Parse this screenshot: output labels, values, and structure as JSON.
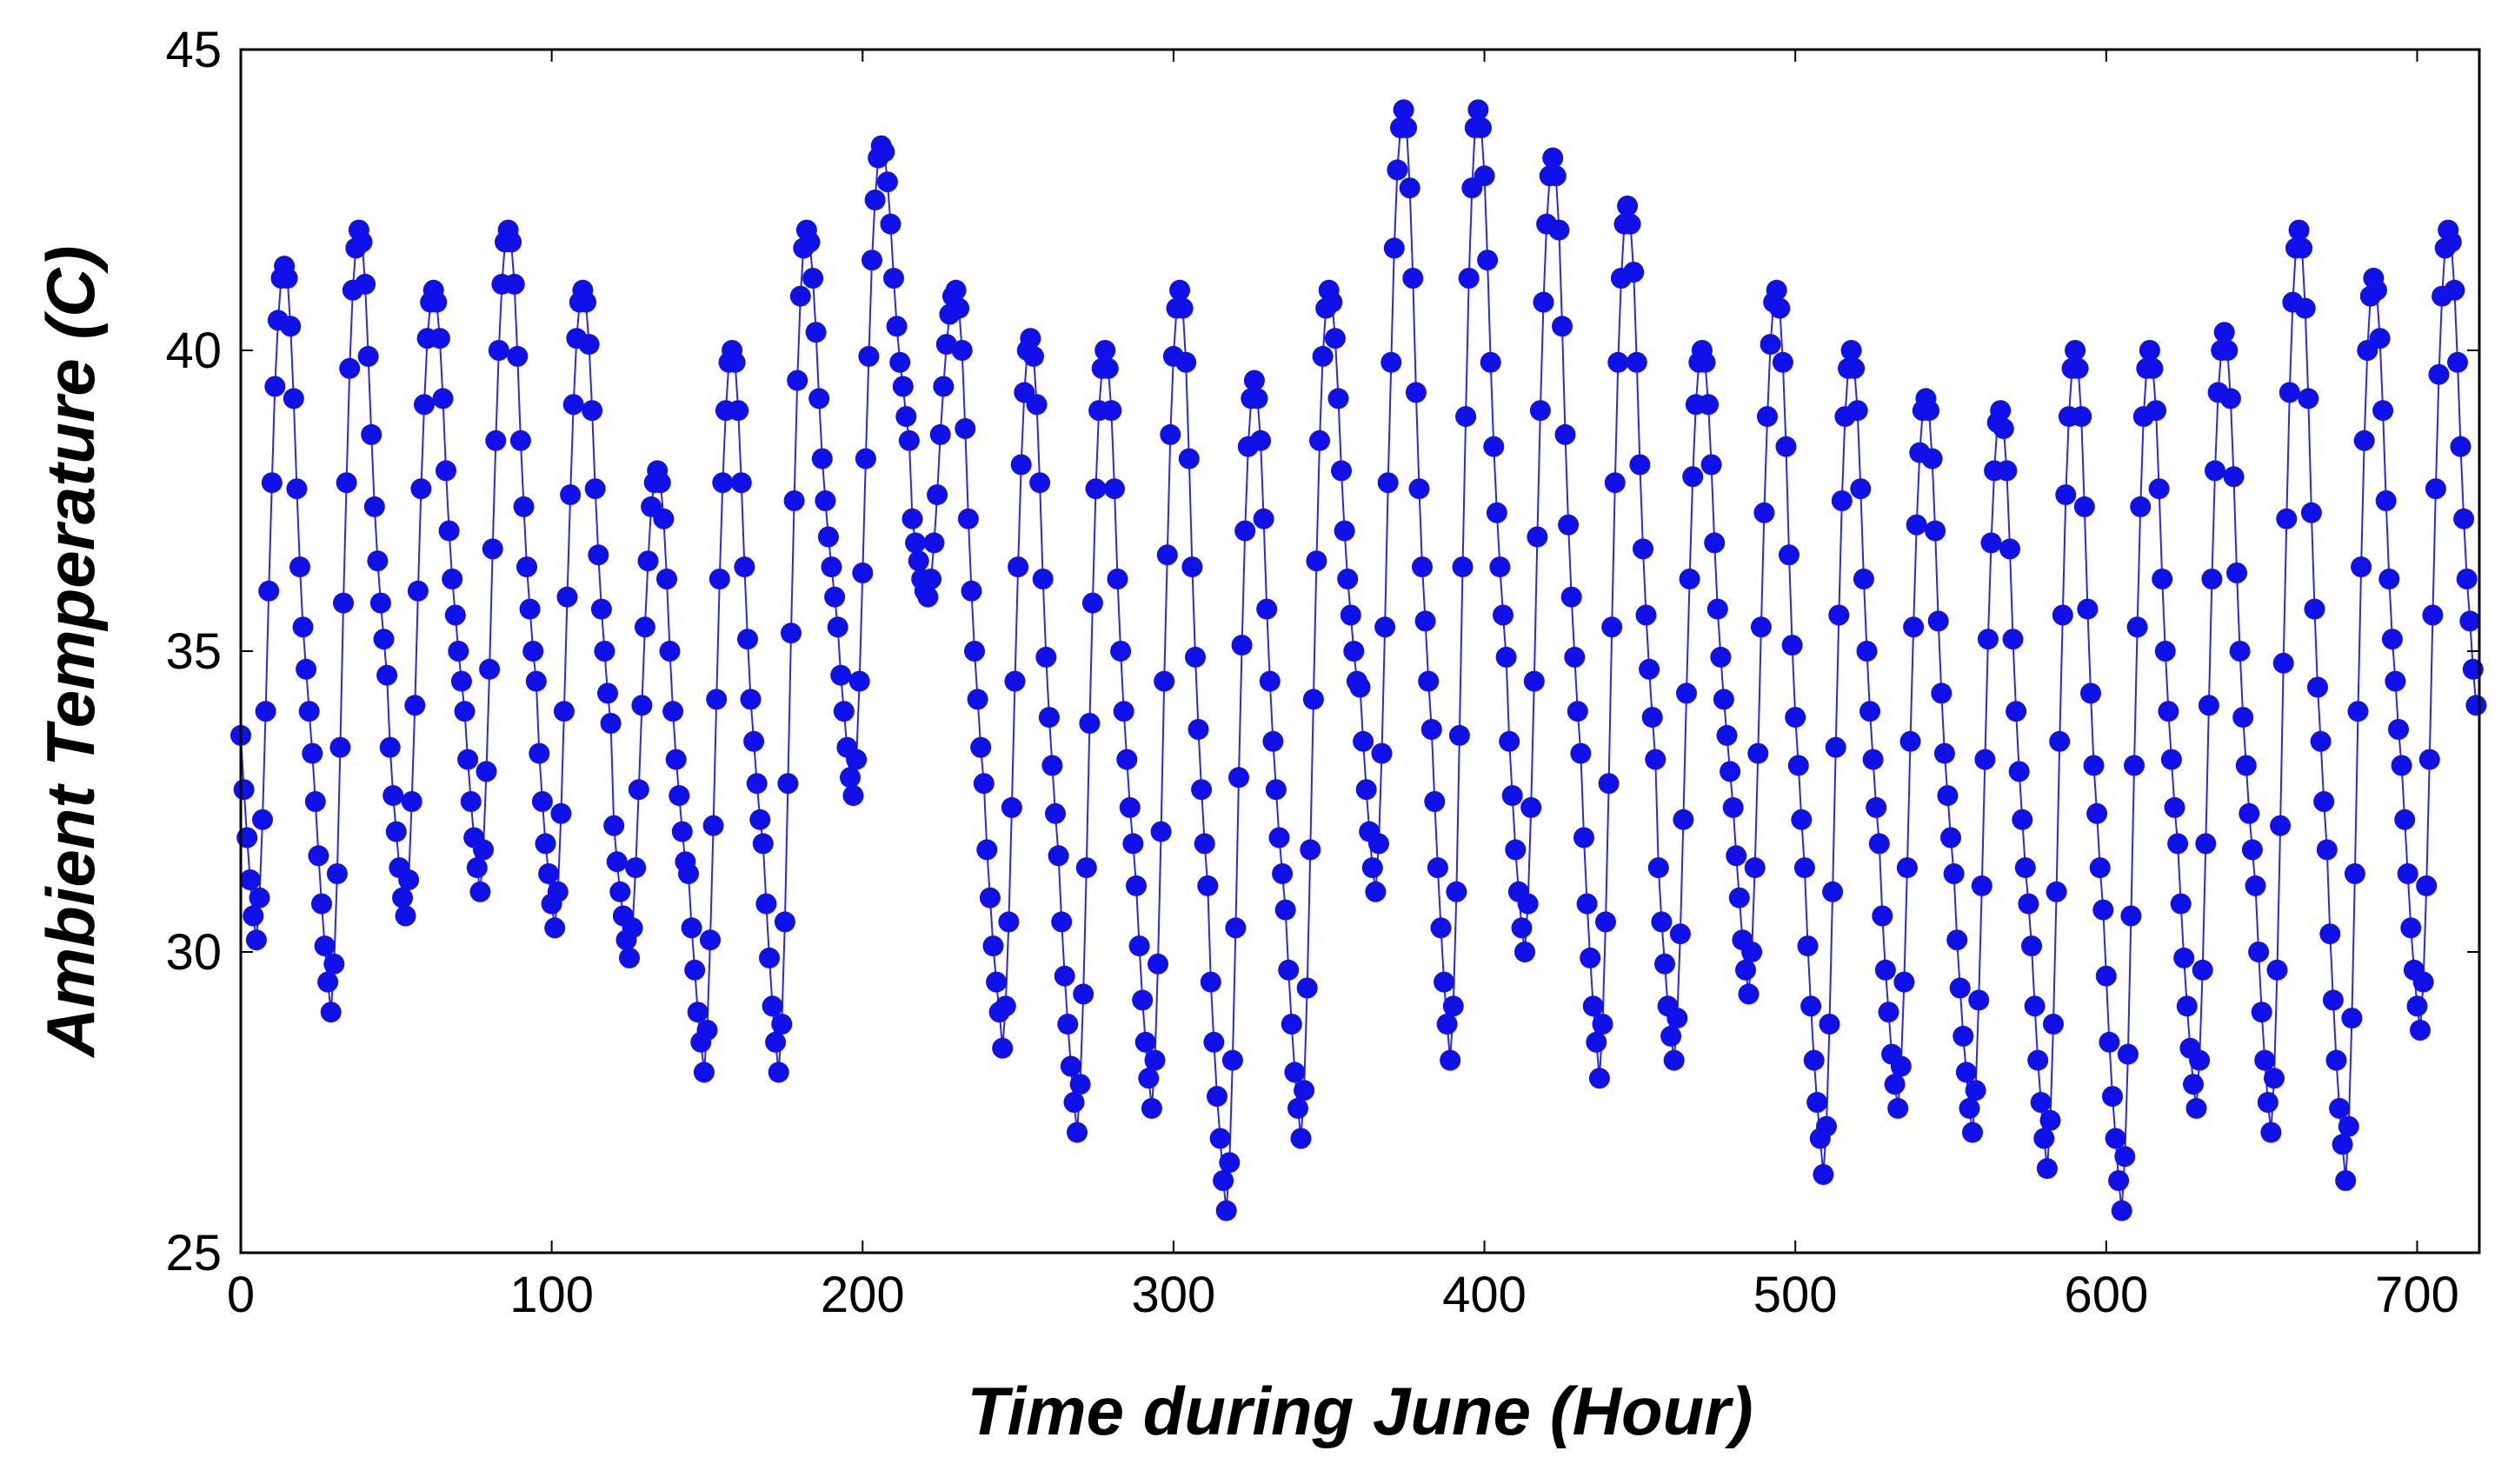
{
  "chart_data": {
    "type": "line",
    "title": "",
    "xlabel": "Time during June (Hour)",
    "ylabel": "Ambient Temperature (C)",
    "xlim": [
      0,
      720
    ],
    "ylim": [
      25,
      45
    ],
    "xticks": [
      0,
      100,
      200,
      300,
      400,
      500,
      600,
      700
    ],
    "yticks": [
      25,
      30,
      35,
      40,
      45
    ],
    "grid": false,
    "legend": "none",
    "marker": "circle",
    "colors": {
      "series": "#1010e8",
      "line": "#2a2ad8",
      "axes": "#000000"
    },
    "series": [
      {
        "name": "",
        "day_lows": [
          30.2,
          29.0,
          30.6,
          31.0,
          30.4,
          29.9,
          28.0,
          28.0,
          32.6,
          35.9,
          28.4,
          27.0,
          27.4,
          25.7,
          26.9,
          31.0,
          28.2,
          30.0,
          27.9,
          28.2,
          29.3,
          26.3,
          27.4,
          27.0,
          26.4,
          25.7,
          27.4,
          27.0,
          26.2,
          28.7,
          29.9
        ],
        "day_highs": [
          41.4,
          42.0,
          41.0,
          42.0,
          41.0,
          38.0,
          40.0,
          42.0,
          43.4,
          41.0,
          40.2,
          40.0,
          41.0,
          39.5,
          41.0,
          44.0,
          44.0,
          43.2,
          42.4,
          40.0,
          41.0,
          40.0,
          39.2,
          39.0,
          40.0,
          40.0,
          40.3,
          42.0,
          41.2,
          42.0,
          33.4
        ],
        "x": [],
        "y": []
      }
    ]
  }
}
